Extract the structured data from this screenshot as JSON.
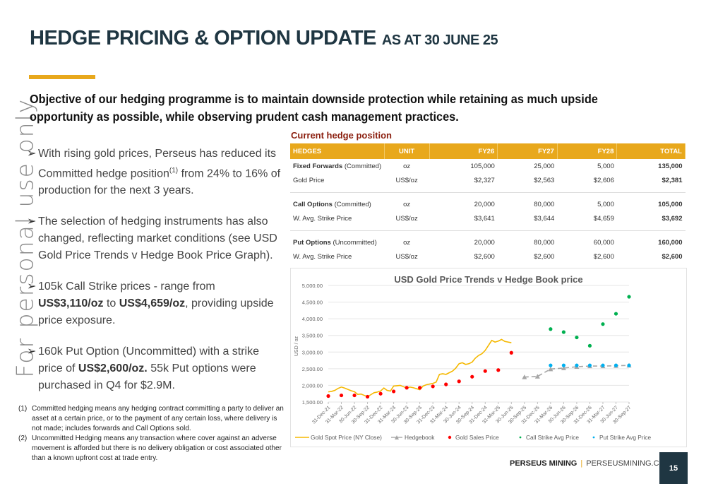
{
  "header": {
    "title": "HEDGE PRICING & OPTION UPDATE",
    "subtitle": "AS AT 30 JUNE 25"
  },
  "watermark": "For personal use only",
  "objective": "Objective of our hedging programme is to maintain downside protection while retaining as much upside opportunity as possible, while observing prudent cash management practices.",
  "bullets": [
    {
      "parts": [
        {
          "t": "With rising gold prices, Perseus has reduced its Committed hedge position"
        },
        {
          "t": "(1)",
          "sup": true
        },
        {
          "t": " from 24% to 16% of production for the next 3 years."
        }
      ]
    },
    {
      "parts": [
        {
          "t": "The selection of hedging instruments has also changed, reflecting market conditions  (see USD Gold Price Trends v Hedge Book Price Graph)."
        }
      ]
    },
    {
      "parts": [
        {
          "t": "105k Call Strike prices -  range from "
        },
        {
          "t": "US$3,110/oz",
          "b": true
        },
        {
          "t": " to "
        },
        {
          "t": "US$4,659/oz",
          "b": true
        },
        {
          "t": ", providing upside price exposure."
        }
      ]
    },
    {
      "parts": [
        {
          "t": "160k Put Option (Uncommitted) with a strike price of "
        },
        {
          "t": "US$2,600/oz.",
          "b": true
        },
        {
          "t": "  55k Put options were purchased in Q4 for $2.9M."
        }
      ]
    }
  ],
  "footnotes": [
    {
      "num": "(1)",
      "text": "Committed hedging means any hedging contract committing a party to deliver an asset at a certain price, or to the payment of any certain loss, where delivery is not made; includes forwards and Call Options sold."
    },
    {
      "num": "(2)",
      "text": "Uncommitted Hedging means any transaction where cover against an adverse movement is afforded but there is no delivery obligation or cost associated other than a known upfront cost at trade entry."
    }
  ],
  "hedge_table": {
    "title": "Current hedge position",
    "headers": [
      "HEDGES",
      "UNIT",
      "FY26",
      "FY27",
      "FY28",
      "TOTAL"
    ],
    "groups": [
      {
        "rows": [
          {
            "label_bold": "Fixed Forwards",
            "label_rest": " (Committed)",
            "unit": "oz",
            "fy26": "105,000",
            "fy27": "25,000",
            "fy28": "5,000",
            "total": "135,000"
          },
          {
            "label_bold": "",
            "label_rest": "Gold Price",
            "unit": "US$/oz",
            "fy26": "$2,327",
            "fy27": "$2,563",
            "fy28": "$2,606",
            "total": "$2,381"
          }
        ]
      },
      {
        "rows": [
          {
            "label_bold": "Call Options",
            "label_rest": " (Committed)",
            "unit": "oz",
            "fy26": "20,000",
            "fy27": "80,000",
            "fy28": "5,000",
            "total": "105,000"
          },
          {
            "label_bold": "",
            "label_rest": "W. Avg. Strike Price",
            "unit": "US$/oz",
            "fy26": "$3,641",
            "fy27": "$3,644",
            "fy28": "$4,659",
            "total": "$3,692"
          }
        ]
      },
      {
        "rows": [
          {
            "label_bold": "Put Options",
            "label_rest": " (Uncommitted)",
            "unit": "oz",
            "fy26": "20,000",
            "fy27": "80,000",
            "fy28": "60,000",
            "total": "160,000"
          },
          {
            "label_bold": "",
            "label_rest": "W. Avg. Strike Price",
            "unit": "US$/oz",
            "fy26": "$2,600",
            "fy27": "$2,600",
            "fy28": "$2,600",
            "total": "$2,600"
          }
        ]
      }
    ]
  },
  "chart_data": {
    "type": "line",
    "title": "USD Gold Price Trends v Hedge Book price",
    "xlabel": "",
    "ylabel": "USD / oz",
    "ylim": [
      1500,
      5000
    ],
    "yticks": [
      "1,500.00",
      "2,000.00",
      "2,500.00",
      "3,000.00",
      "3,500.00",
      "4,000.00",
      "4,500.00",
      "5,000.00"
    ],
    "ytick_values": [
      1500,
      2000,
      2500,
      3000,
      3500,
      4000,
      4500,
      5000
    ],
    "grid": true,
    "legend_position": "bottom",
    "categories": [
      "31-Dec-21",
      "31-Mar-22",
      "30-Jun-22",
      "30-Sep-22",
      "31-Dec-22",
      "31-Mar-23",
      "30-Jun-23",
      "30-Sep-23",
      "31-Dec-23",
      "31-Mar-24",
      "30-Jun-24",
      "30-Sep-24",
      "31-Dec-24",
      "31-Mar-25",
      "30-Jun-25",
      "30-Sep-25",
      "31-Dec-25",
      "31-Mar-26",
      "30-Jun-26",
      "30-Sep-26",
      "31-Dec-26",
      "31-Mar-27",
      "30-Jun-27",
      "30-Sep-27"
    ],
    "series": [
      {
        "name": "Gold Spot Price (NY Close)",
        "kind": "line",
        "color": "#f5b800",
        "x_index": [
          0,
          0.25,
          0.5,
          0.75,
          1,
          1.25,
          1.5,
          1.75,
          2,
          2.25,
          2.5,
          2.75,
          3,
          3.25,
          3.5,
          3.75,
          4,
          4.25,
          4.5,
          4.75,
          5,
          5.25,
          5.5,
          5.75,
          6,
          6.25,
          6.5,
          6.75,
          7,
          7.25,
          7.5,
          7.75,
          8,
          8.25,
          8.5,
          8.75,
          9,
          9.25,
          9.5,
          9.75,
          10,
          10.25,
          10.5,
          10.75,
          11,
          11.25,
          11.5,
          11.75,
          12,
          12.25,
          12.5,
          12.75,
          13,
          13.25,
          13.5,
          13.75,
          14
        ],
        "values": [
          1805,
          1820,
          1850,
          1910,
          1950,
          1920,
          1880,
          1840,
          1810,
          1730,
          1740,
          1700,
          1660,
          1720,
          1780,
          1800,
          1830,
          1920,
          1850,
          1830,
          1980,
          1990,
          2000,
          1960,
          1920,
          1950,
          1930,
          1900,
          1870,
          1980,
          2020,
          2040,
          2060,
          2100,
          2330,
          2350,
          2330,
          2380,
          2430,
          2520,
          2650,
          2680,
          2630,
          2650,
          2700,
          2820,
          2900,
          2950,
          3050,
          3200,
          3350,
          3300,
          3330,
          3380,
          3320,
          3300,
          3280
        ]
      },
      {
        "name": "Hedgebook",
        "kind": "dashed-line-triangle",
        "color": "#a6a6a6",
        "x_index": [
          15,
          16,
          17,
          18,
          19,
          20,
          21,
          22,
          23
        ],
        "values": [
          2250,
          2270,
          2490,
          2520,
          2560,
          2580,
          2580,
          2590,
          2600
        ]
      },
      {
        "name": "Gold Sales Price",
        "kind": "scatter",
        "color": "#ff0000",
        "x_index": [
          0,
          1,
          2,
          3,
          4,
          5,
          6,
          7,
          8,
          9,
          10,
          11,
          12,
          13,
          14
        ],
        "values": [
          1680,
          1700,
          1700,
          1660,
          1750,
          1820,
          1930,
          1930,
          1970,
          2030,
          2120,
          2260,
          2430,
          2460,
          2980
        ]
      },
      {
        "name": "Call Strike Avg Price",
        "kind": "scatter",
        "color": "#00b050",
        "x_index": [
          17,
          18,
          19,
          20,
          21,
          22,
          23
        ],
        "values": [
          3690,
          3600,
          3440,
          3190,
          3840,
          4150,
          4660
        ]
      },
      {
        "name": "Put Strike Avg Price",
        "kind": "scatter",
        "color": "#00b0f0",
        "x_index": [
          17,
          18,
          19,
          20,
          21,
          22,
          23
        ],
        "values": [
          2600,
          2600,
          2600,
          2600,
          2600,
          2600,
          2600
        ]
      }
    ]
  },
  "footer": {
    "brand": "PERSEUS MINING",
    "separator": "|",
    "url": "PERSEUSMINING.COM",
    "page_number": "15"
  },
  "colors": {
    "accent": "#e8a81c",
    "title": "#1f3642",
    "table_title": "#8b1f0f"
  }
}
